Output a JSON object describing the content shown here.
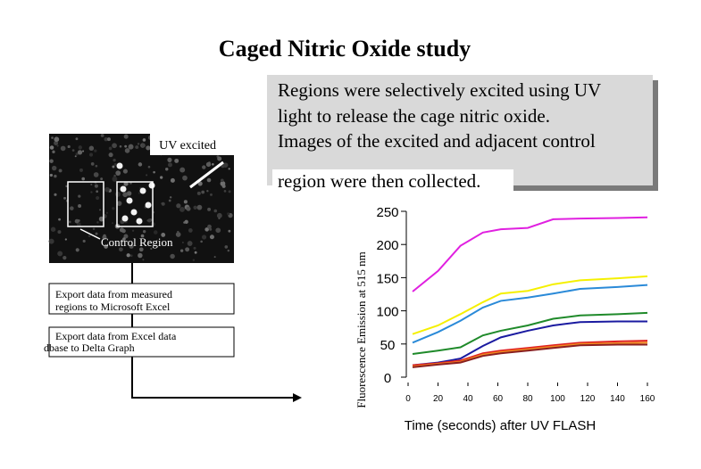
{
  "title": "Caged Nitric Oxide study",
  "callout": {
    "lines": [
      "Regions were selectively excited using UV",
      "light to release the cage nitric oxide.",
      "Images of the excited and adjacent control",
      "region were then collected."
    ]
  },
  "image_labels": {
    "uv": "UV excited",
    "control": "Control Region"
  },
  "steps": [
    [
      "Export data from measured",
      "regions to Microsoft Excel"
    ],
    [
      "Export data from Excel data",
      "dbase to Delta Graph"
    ]
  ],
  "chart_data": {
    "type": "line",
    "x_label": "Time (seconds) after UV FLASH",
    "y_label": "Fluorescence Emission at 515 nm",
    "x": [
      3,
      20,
      35,
      50,
      62,
      80,
      97,
      115,
      140,
      160
    ],
    "xlim": [
      0,
      160
    ],
    "xticks": [
      0,
      20,
      40,
      60,
      80,
      100,
      120,
      140,
      160
    ],
    "ylim": [
      0,
      250
    ],
    "yticks": [
      0,
      50,
      100,
      150,
      200,
      250
    ],
    "series": [
      {
        "color": "#e020e0",
        "values": [
          129,
          160,
          198,
          218,
          223,
          225,
          238,
          239,
          240,
          241
        ]
      },
      {
        "color": "#f5f000",
        "values": [
          65,
          78,
          95,
          113,
          126,
          130,
          140,
          146,
          149,
          152
        ]
      },
      {
        "color": "#2a8ad8",
        "values": [
          52,
          68,
          85,
          105,
          115,
          120,
          126,
          133,
          136,
          139
        ]
      },
      {
        "color": "#1f8a2a",
        "values": [
          35,
          40,
          45,
          63,
          70,
          78,
          88,
          93,
          95,
          97
        ]
      },
      {
        "color": "#1a1aa0",
        "values": [
          18,
          22,
          28,
          47,
          60,
          70,
          78,
          83,
          84,
          84
        ]
      },
      {
        "color": "#e02020",
        "values": [
          18,
          21,
          25,
          36,
          40,
          44,
          48,
          52,
          54,
          55
        ]
      },
      {
        "color": "#f08a20",
        "values": [
          16,
          20,
          23,
          34,
          38,
          42,
          46,
          50,
          51,
          52
        ]
      },
      {
        "color": "#8a2020",
        "values": [
          15,
          19,
          22,
          32,
          36,
          40,
          44,
          48,
          49,
          49
        ]
      }
    ]
  }
}
